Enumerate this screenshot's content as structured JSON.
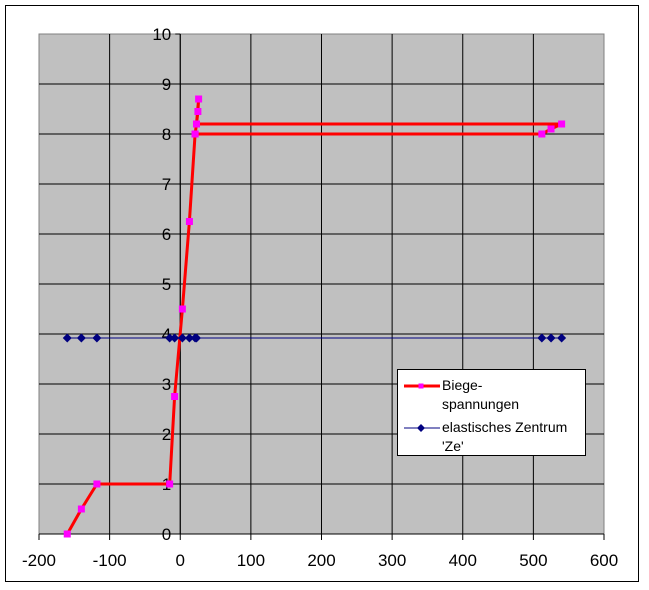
{
  "chart_data": {
    "type": "scatter",
    "title": "",
    "xlabel": "",
    "ylabel": "",
    "xlim": [
      -200,
      600
    ],
    "ylim": [
      0,
      10
    ],
    "x_ticks": [
      -200,
      -100,
      0,
      100,
      200,
      300,
      400,
      500,
      600
    ],
    "x_tick_labels": [
      "-200",
      "-100",
      "0",
      "100",
      "200",
      "300",
      "400",
      "500",
      "600"
    ],
    "y_ticks": [
      0,
      1,
      2,
      3,
      4,
      5,
      6,
      7,
      8,
      9,
      10
    ],
    "y_tick_labels": [
      "0",
      "1",
      "2",
      "3",
      "4",
      "5",
      "6",
      "7",
      "8",
      "9",
      "10"
    ],
    "y_axis_crosses_at_x": 0,
    "grid": true,
    "plot_background": "#c0c0c0",
    "legend_position": "inside-right",
    "series": [
      {
        "name": "Biege-spannungen",
        "legend_lines": [
          "Biege-",
          "spannungen"
        ],
        "line_color": "#ff0000",
        "marker_color": "#ff00ff",
        "marker": "square",
        "line_width": 3,
        "points": [
          [
            -160,
            0
          ],
          [
            -140,
            0.5
          ],
          [
            -118,
            1
          ],
          [
            -15,
            1
          ],
          [
            -8,
            2.75
          ],
          [
            3,
            4.5
          ],
          [
            13,
            6.25
          ],
          [
            21,
            8.0
          ],
          [
            23,
            8.2
          ],
          [
            25,
            8.45
          ],
          [
            26,
            8.7
          ],
          [
            23,
            8.2
          ],
          [
            540,
            8.2
          ],
          [
            525,
            8.1
          ],
          [
            512,
            8.0
          ],
          [
            21,
            8.0
          ]
        ]
      },
      {
        "name": "elastisches Zentrum 'Ze'",
        "legend_lines": [
          "elastisches Zentrum",
          "'Ze'"
        ],
        "line_color": "#000080",
        "marker_color": "#000080",
        "marker": "diamond",
        "line_width": 1,
        "points": [
          [
            -160,
            3.92
          ],
          [
            -140,
            3.92
          ],
          [
            -118,
            3.92
          ],
          [
            -15,
            3.92
          ],
          [
            -8,
            3.92
          ],
          [
            3,
            3.92
          ],
          [
            13,
            3.92
          ],
          [
            21,
            3.92
          ],
          [
            23,
            3.92
          ],
          [
            512,
            3.92
          ],
          [
            525,
            3.92
          ],
          [
            540,
            3.92
          ]
        ]
      }
    ]
  }
}
